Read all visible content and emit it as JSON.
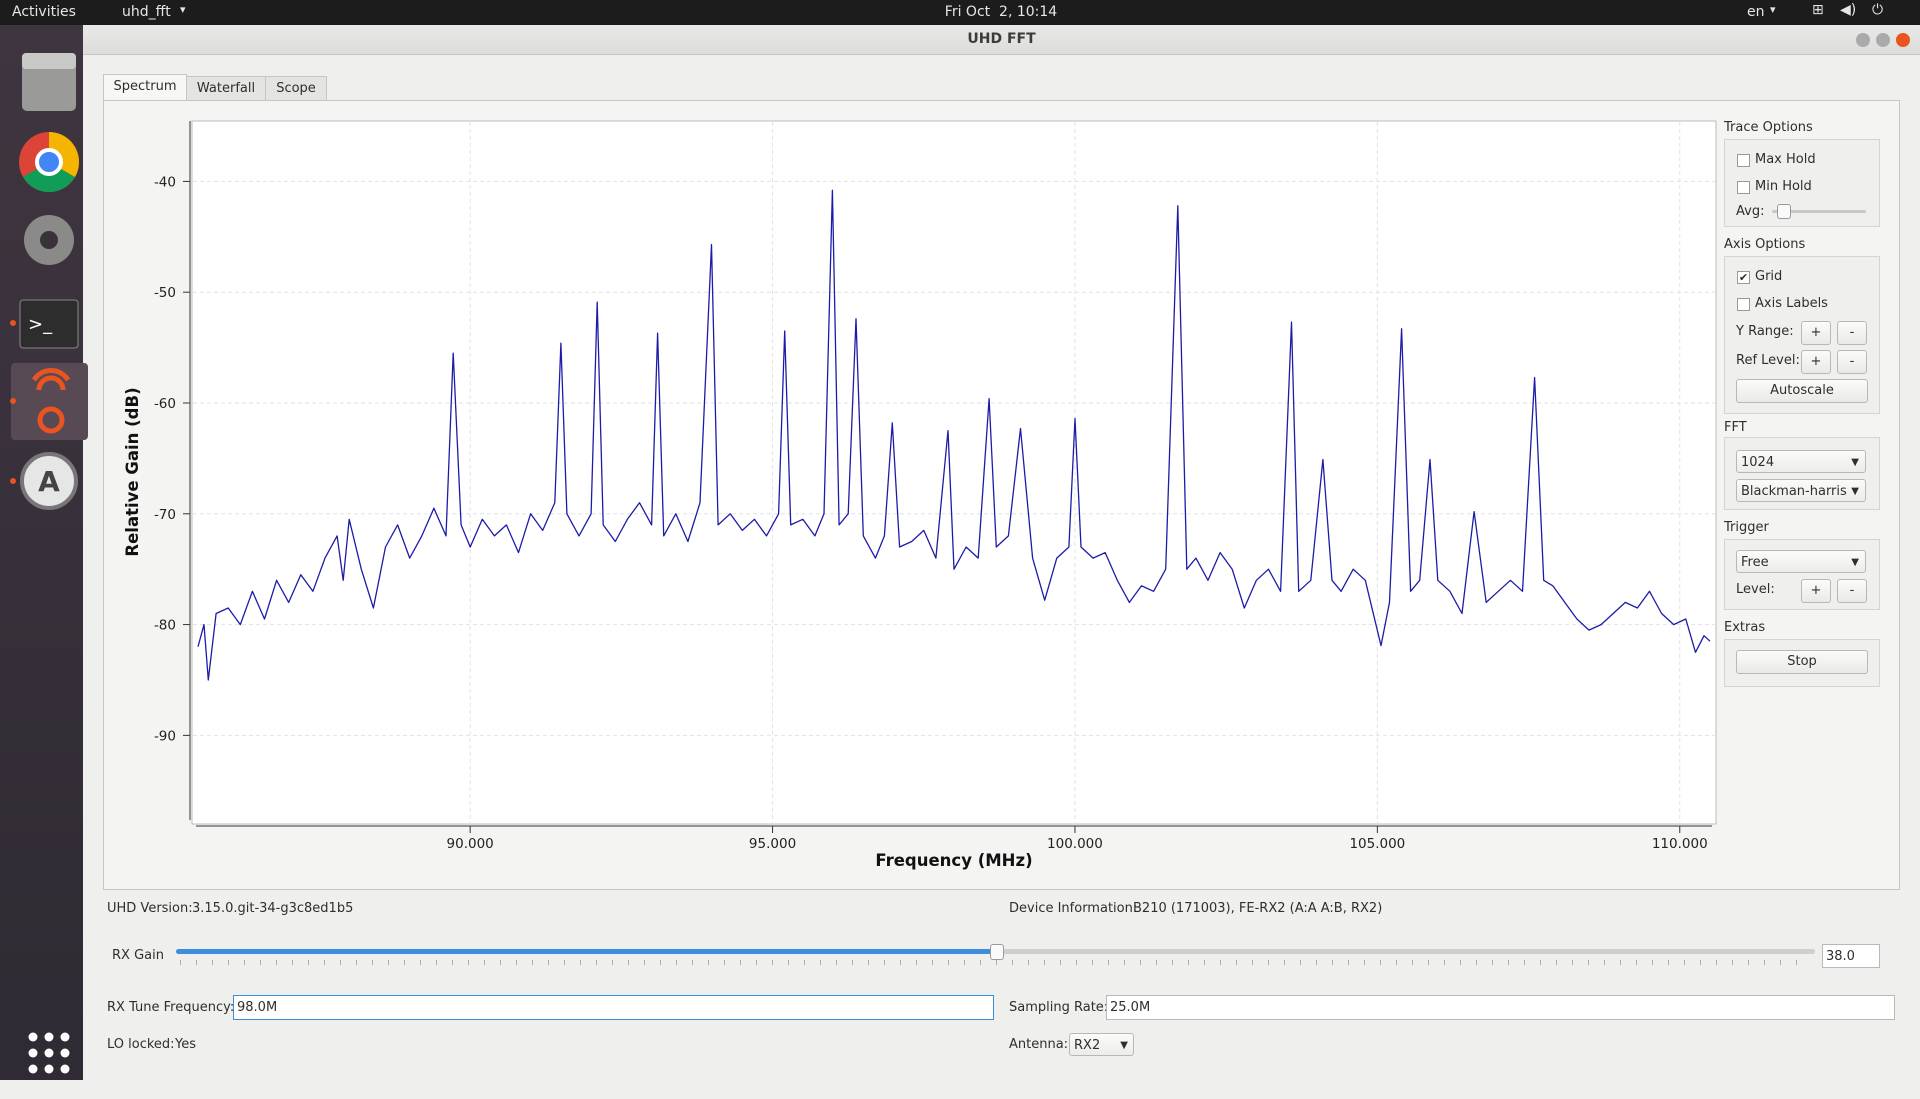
{
  "top_bar": {
    "activities": "Activities",
    "app_menu": "uhd_fft",
    "clock": "Fri Oct  2, 10:14",
    "language": "en"
  },
  "window_title": "UHD FFT",
  "tabs": [
    "Spectrum",
    "Waterfall",
    "Scope"
  ],
  "chart_data": {
    "type": "line",
    "xlabel": "Frequency (MHz)",
    "ylabel": "Relative Gain (dB)",
    "color": "#1c1ca8",
    "grid": true,
    "xlim": [
      85.5,
      110.5
    ],
    "ylim": [
      -98,
      -35
    ],
    "xticks": [
      {
        "value": 90,
        "label": "90.000"
      },
      {
        "value": 95,
        "label": "95.000"
      },
      {
        "value": 100,
        "label": "100.000"
      },
      {
        "value": 105,
        "label": "105.000"
      },
      {
        "value": 110,
        "label": "110.000"
      }
    ],
    "yticks": [
      -40,
      -50,
      -60,
      -70,
      -80,
      -90
    ],
    "x": [
      85.5,
      85.6,
      85.67,
      85.8,
      86.0,
      86.2,
      86.4,
      86.6,
      86.8,
      87.0,
      87.2,
      87.4,
      87.6,
      87.8,
      87.9,
      88.0,
      88.2,
      88.4,
      88.6,
      88.8,
      89.0,
      89.2,
      89.4,
      89.6,
      89.72,
      89.85,
      90.0,
      90.2,
      90.4,
      90.6,
      90.8,
      91.0,
      91.2,
      91.4,
      91.5,
      91.6,
      91.8,
      92.0,
      92.1,
      92.2,
      92.4,
      92.6,
      92.8,
      93.0,
      93.1,
      93.2,
      93.4,
      93.6,
      93.8,
      93.99,
      94.1,
      94.3,
      94.5,
      94.7,
      94.9,
      95.1,
      95.2,
      95.3,
      95.5,
      95.7,
      95.85,
      95.99,
      96.1,
      96.25,
      96.38,
      96.5,
      96.7,
      96.85,
      96.98,
      97.1,
      97.3,
      97.5,
      97.7,
      97.9,
      98.0,
      98.2,
      98.4,
      98.58,
      98.7,
      98.9,
      99.1,
      99.3,
      99.5,
      99.7,
      99.9,
      100.0,
      100.1,
      100.3,
      100.5,
      100.7,
      100.9,
      101.1,
      101.3,
      101.5,
      101.7,
      101.85,
      102.0,
      102.2,
      102.4,
      102.6,
      102.8,
      103.0,
      103.2,
      103.4,
      103.58,
      103.7,
      103.9,
      104.1,
      104.25,
      104.4,
      104.6,
      104.8,
      105.06,
      105.2,
      105.4,
      105.55,
      105.7,
      105.87,
      106.0,
      106.2,
      106.4,
      106.6,
      106.8,
      107.0,
      107.2,
      107.4,
      107.6,
      107.75,
      107.9,
      108.1,
      108.3,
      108.5,
      108.7,
      108.9,
      109.1,
      109.3,
      109.5,
      109.7,
      109.9,
      110.1,
      110.26,
      110.4,
      110.5
    ],
    "values": [
      -82,
      -80,
      -85,
      -79,
      -78.5,
      -80,
      -77,
      -79.5,
      -76,
      -78,
      -75.5,
      -77,
      -74,
      -72,
      -76,
      -70.5,
      -75,
      -78.5,
      -73,
      -71,
      -74,
      -72,
      -69.5,
      -72,
      -55.5,
      -71,
      -73,
      -70.5,
      -72,
      -71,
      -73.5,
      -70,
      -71.5,
      -69,
      -54.6,
      -70,
      -72,
      -70,
      -50.9,
      -71,
      -72.5,
      -70.5,
      -69,
      -71,
      -53.7,
      -72,
      -70,
      -72.5,
      -69,
      -45.7,
      -71,
      -70,
      -71.5,
      -70.5,
      -72,
      -70,
      -53.5,
      -71,
      -70.5,
      -72,
      -70,
      -40.8,
      -71,
      -70,
      -52.4,
      -72,
      -74,
      -72,
      -61.8,
      -73,
      -72.5,
      -71.5,
      -74,
      -62.5,
      -75,
      -73,
      -74,
      -59.6,
      -73,
      -72,
      -62.3,
      -74,
      -77.8,
      -74,
      -73,
      -61.4,
      -73,
      -74,
      -73.5,
      -76,
      -78,
      -76.5,
      -77,
      -75,
      -42.2,
      -75,
      -74,
      -76,
      -73.5,
      -75,
      -78.5,
      -76,
      -75,
      -77,
      -52.7,
      -77,
      -76,
      -65.1,
      -76,
      -77,
      -75,
      -76,
      -81.9,
      -78,
      -53.3,
      -77,
      -76,
      -65.1,
      -76,
      -77,
      -79,
      -69.8,
      -78,
      -77,
      -76,
      -77,
      -57.7,
      -76,
      -76.5,
      -78,
      -79.5,
      -80.5,
      -80,
      -79,
      -78,
      -78.5,
      -77,
      -79,
      -80,
      -79.5,
      -82.5,
      -81,
      -81.5
    ]
  },
  "controls": {
    "trace_options": {
      "title": "Trace Options",
      "max_hold": "Max Hold",
      "min_hold": "Min Hold",
      "avg": "Avg:"
    },
    "axis_options": {
      "title": "Axis Options",
      "grid": "Grid",
      "axis_labels": "Axis Labels",
      "y_range": "Y Range:",
      "ref_level": "Ref Level:",
      "plus": "+",
      "minus": "-",
      "autoscale": "Autoscale"
    },
    "fft": {
      "title": "FFT",
      "size": "1024",
      "window": "Blackman-harris"
    },
    "trigger": {
      "title": "Trigger",
      "mode": "Free",
      "level": "Level:"
    },
    "extras": {
      "title": "Extras",
      "stop": "Stop"
    }
  },
  "status": {
    "uhd_version_label": "UHD Version:",
    "uhd_version": "3.15.0.git-34-g3c8ed1b5",
    "device_info_label": "Device Information:",
    "device_info": "B210 (171003), FE-RX2 (A:A A:B, RX2)",
    "rx_gain_label": "RX Gain",
    "rx_gain": "38.0",
    "rx_tune_label": "RX Tune Frequency:",
    "rx_tune": "98.0M",
    "sampling_rate_label": "Sampling Rate:",
    "sampling_rate": "25.0M",
    "lo_locked_label": "LO locked:",
    "lo_locked": "Yes",
    "antenna_label": "Antenna:",
    "antenna": "RX2"
  }
}
